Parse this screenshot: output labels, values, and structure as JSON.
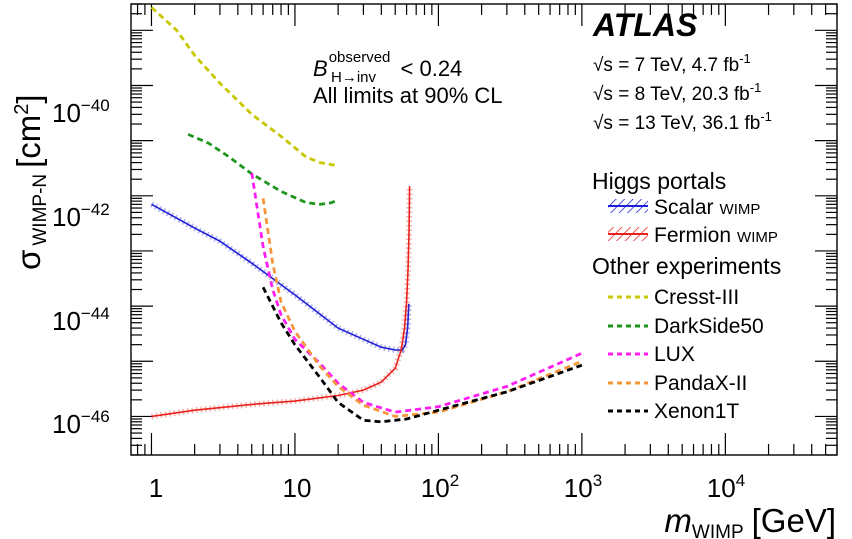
{
  "chart_data": {
    "type": "line",
    "x_scale": "log",
    "y_scale": "log",
    "xlim": [
      0.72,
      60000
    ],
    "ylim": [
      2e-47,
      3e-39
    ],
    "x_ticks": [
      {
        "value": 1,
        "label": "1"
      },
      {
        "value": 10,
        "label": "10"
      },
      {
        "value": 100,
        "base": "10",
        "exp": "2"
      },
      {
        "value": 1000,
        "base": "10",
        "exp": "3"
      },
      {
        "value": 10000,
        "base": "10",
        "exp": "4"
      }
    ],
    "y_ticks": [
      {
        "value": 1e-46,
        "base": "10",
        "exp": "−46"
      },
      {
        "value": 1e-44,
        "base": "10",
        "exp": "−44"
      },
      {
        "value": 1e-42,
        "base": "10",
        "exp": "−42"
      },
      {
        "value": 1e-40,
        "base": "10",
        "exp": "−40"
      }
    ],
    "xlabel": {
      "main": "m",
      "sub": "WIMP",
      "unit": "[GeV]"
    },
    "ylabel": {
      "main": "σ",
      "sub": "WIMP-N",
      "unit": "[cm",
      "unit_exp": "2",
      "unit_close": "]"
    },
    "annotations": {
      "experiment": "ATLAS",
      "energy_lines": [
        {
          "sqrt": "√s",
          "text": " = 7 TeV, 4.7 fb",
          "exp": "-1"
        },
        {
          "sqrt": "√s",
          "text": " = 8 TeV, 20.3 fb",
          "exp": "-1"
        },
        {
          "sqrt": "√s",
          "text": " = 13 TeV, 36.1 fb",
          "exp": "-1"
        }
      ],
      "limit_B": "B",
      "limit_sup": "observed",
      "limit_sub": "H→inv",
      "limit_value": " < 0.24",
      "cl_text": "All limits at 90% CL"
    },
    "legend": {
      "placement": "right",
      "group1": "Higgs portals",
      "group2": "Other experiments",
      "entries": [
        {
          "name": "Scalar",
          "suffix": "WIMP",
          "color": "#1f1fd6",
          "style": "band"
        },
        {
          "name": "Fermion",
          "suffix": "WIMP",
          "color": "#e8221c",
          "style": "band"
        },
        {
          "name": "Cresst-III",
          "color": "#c8c800",
          "style": "dashed"
        },
        {
          "name": "DarkSide50",
          "color": "#1e961e",
          "style": "dashed"
        },
        {
          "name": "LUX",
          "color": "#ff1ef0",
          "style": "dashed"
        },
        {
          "name": "PandaX-II",
          "color": "#f5963c",
          "style": "dashed"
        },
        {
          "name": "Xenon1T",
          "color": "#000000",
          "style": "dashed"
        }
      ]
    },
    "series": [
      {
        "name": "Scalar WIMP",
        "color": "#1f1fd6",
        "style": "band",
        "points": [
          [
            1,
            7e-43
          ],
          [
            2,
            2.6e-43
          ],
          [
            3,
            1.5e-43
          ],
          [
            5,
            6e-44
          ],
          [
            10,
            1.6e-44
          ],
          [
            20,
            4e-45
          ],
          [
            30,
            2.5e-45
          ],
          [
            40,
            1.8e-45
          ],
          [
            50,
            1.6e-45
          ],
          [
            56,
            1.6e-45
          ],
          [
            59,
            2e-45
          ],
          [
            61,
            4e-45
          ],
          [
            62.3,
            1.1e-44
          ]
        ]
      },
      {
        "name": "Fermion WIMP",
        "color": "#e8221c",
        "style": "band",
        "points": [
          [
            1,
            1e-46
          ],
          [
            2,
            1.3e-46
          ],
          [
            5,
            1.65e-46
          ],
          [
            10,
            1.9e-46
          ],
          [
            20,
            2.4e-46
          ],
          [
            30,
            3e-46
          ],
          [
            40,
            4.2e-46
          ],
          [
            50,
            7.5e-46
          ],
          [
            55,
            1.6e-45
          ],
          [
            58,
            4e-45
          ],
          [
            60,
            1.2e-44
          ],
          [
            61.5,
            5e-44
          ],
          [
            62.5,
            2.5e-43
          ],
          [
            63,
            1.5e-42
          ]
        ]
      },
      {
        "name": "Cresst-III",
        "color": "#c8c800",
        "style": "dashed",
        "points": [
          [
            1,
            2.6e-39
          ],
          [
            1.5,
            1e-39
          ],
          [
            2,
            3.5e-40
          ],
          [
            3,
            1.1e-40
          ],
          [
            5,
            3e-41
          ],
          [
            8,
            1.2e-41
          ],
          [
            12,
            5e-42
          ],
          [
            15,
            4e-42
          ],
          [
            20,
            3.5e-42
          ]
        ]
      },
      {
        "name": "DarkSide50",
        "color": "#1e961e",
        "style": "dashed",
        "points": [
          [
            1.8,
            1.3e-41
          ],
          [
            2.5,
            9e-42
          ],
          [
            3.5,
            5e-42
          ],
          [
            5,
            2.5e-42
          ],
          [
            8,
            1.2e-42
          ],
          [
            12,
            7.5e-43
          ],
          [
            15,
            7e-43
          ],
          [
            18,
            7.5e-43
          ],
          [
            20,
            8.5e-43
          ]
        ]
      },
      {
        "name": "LUX",
        "color": "#ff1ef0",
        "style": "dashed",
        "points": [
          [
            5,
            2.6e-42
          ],
          [
            6,
            1.2e-43
          ],
          [
            7,
            2e-44
          ],
          [
            8,
            7e-45
          ],
          [
            10,
            2.5e-45
          ],
          [
            15,
            9e-46
          ],
          [
            20,
            4e-46
          ],
          [
            30,
            1.8e-46
          ],
          [
            50,
            1.2e-46
          ],
          [
            100,
            1.5e-46
          ],
          [
            300,
            3.5e-46
          ],
          [
            1000,
            1.4e-45
          ]
        ]
      },
      {
        "name": "PandaX-II",
        "color": "#f5963c",
        "style": "dashed",
        "points": [
          [
            6,
            9e-43
          ],
          [
            7,
            6e-44
          ],
          [
            8,
            1.2e-44
          ],
          [
            10,
            3.5e-45
          ],
          [
            15,
            8e-46
          ],
          [
            20,
            3.5e-46
          ],
          [
            30,
            1.6e-46
          ],
          [
            50,
            1e-46
          ],
          [
            100,
            1.2e-46
          ],
          [
            300,
            2.8e-46
          ],
          [
            1000,
            1e-45
          ]
        ]
      },
      {
        "name": "Xenon1T",
        "color": "#000000",
        "style": "dashed",
        "points": [
          [
            6,
            2.2e-44
          ],
          [
            8,
            5e-45
          ],
          [
            10,
            2e-45
          ],
          [
            15,
            5e-46
          ],
          [
            20,
            1.8e-46
          ],
          [
            30,
            8.5e-47
          ],
          [
            40,
            8e-47
          ],
          [
            60,
            9e-47
          ],
          [
            100,
            1.3e-46
          ],
          [
            300,
            2.8e-46
          ],
          [
            1000,
            8.5e-46
          ]
        ]
      }
    ]
  }
}
